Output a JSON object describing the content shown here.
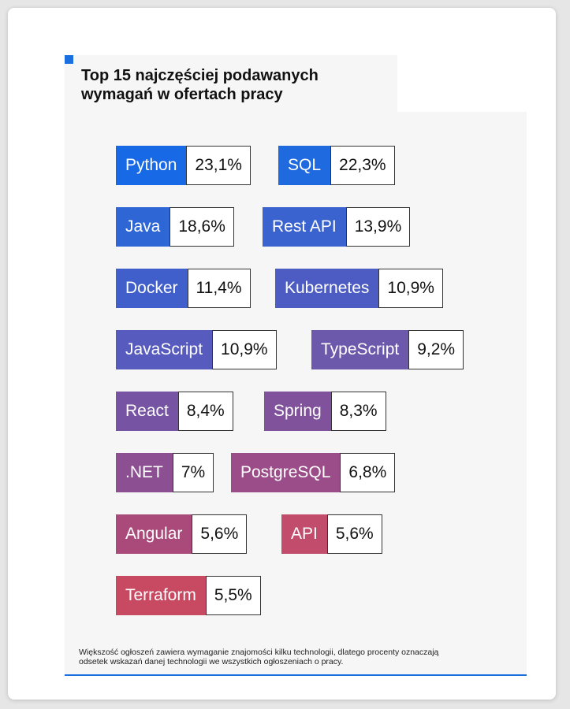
{
  "header": {
    "title_line1": "Top 15 najczęściej podawanych",
    "title_line2": "wymagań w ofertach pracy"
  },
  "chart_data": {
    "type": "table",
    "title": "Top 15 najczęściej podawanych wymagań w ofertach pracy",
    "unit": "%",
    "items": [
      {
        "label": "Python",
        "value_text": "23,1%",
        "value": 23.1,
        "color": "#1769e6"
      },
      {
        "label": "SQL",
        "value_text": "22,3%",
        "value": 22.3,
        "color": "#1f6ade"
      },
      {
        "label": "Java",
        "value_text": "18,6%",
        "value": 18.6,
        "color": "#2e66d6"
      },
      {
        "label": "Rest API",
        "value_text": "13,9%",
        "value": 13.9,
        "color": "#3a63d0"
      },
      {
        "label": "Docker",
        "value_text": "11,4%",
        "value": 11.4,
        "color": "#405fca"
      },
      {
        "label": "Kubernetes",
        "value_text": "10,9%",
        "value": 10.9,
        "color": "#4d5cc2"
      },
      {
        "label": "JavaScript",
        "value_text": "10,9%",
        "value": 10.9,
        "color": "#575bbd"
      },
      {
        "label": "TypeScript",
        "value_text": "9,2%",
        "value": 9.2,
        "color": "#6d59ab"
      },
      {
        "label": "React",
        "value_text": "8,4%",
        "value": 8.4,
        "color": "#7654a3"
      },
      {
        "label": "Spring",
        "value_text": "8,3%",
        "value": 8.3,
        "color": "#80529b"
      },
      {
        "label": ".NET",
        "value_text": "7%",
        "value": 7,
        "color": "#8c4f92"
      },
      {
        "label": "PostgreSQL",
        "value_text": "6,8%",
        "value": 6.8,
        "color": "#9a4d88"
      },
      {
        "label": "Angular",
        "value_text": "5,6%",
        "value": 5.6,
        "color": "#aa4a7b"
      },
      {
        "label": "API",
        "value_text": "5,6%",
        "value": 5.6,
        "color": "#c24c6c"
      },
      {
        "label": "Terraform",
        "value_text": "5,5%",
        "value": 5.5,
        "color": "#c74a62"
      }
    ]
  },
  "footnote": {
    "line1": "Większość ogłoszeń zawiera wymaganie znajomości kilku technologii, dlatego procenty oznaczają",
    "line2": "odsetek wskazań danej technologii we wszystkich ogłoszeniach o pracy."
  }
}
